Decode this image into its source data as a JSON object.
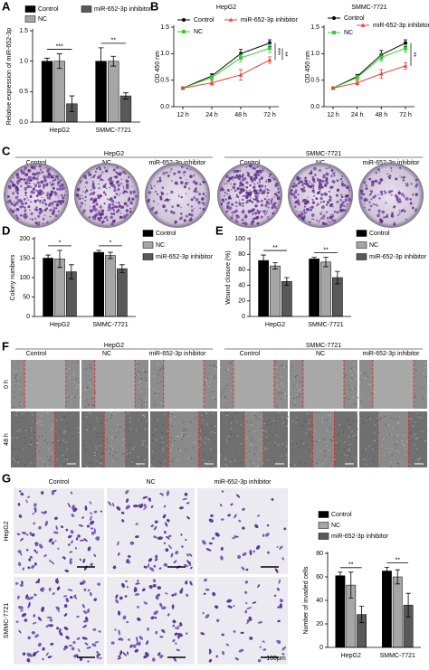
{
  "chart_data": [
    {
      "panel": "A",
      "type": "bar",
      "ylabel": "Relative expression of miR-652-3p",
      "categories": [
        "HepG2",
        "SMMC-7721"
      ],
      "series": [
        {
          "name": "Control",
          "color": "#000000",
          "values": [
            1.0,
            1.0
          ],
          "errors": [
            0.05,
            0.22
          ]
        },
        {
          "name": "NC",
          "color": "#a6a6a6",
          "values": [
            1.0,
            1.0
          ],
          "errors": [
            0.12,
            0.08
          ]
        },
        {
          "name": "miR-652-3p inhibitor",
          "color": "#595959",
          "values": [
            0.3,
            0.43
          ],
          "errors": [
            0.13,
            0.05
          ]
        }
      ],
      "ylim": [
        0,
        1.5
      ],
      "yticks": [
        {
          "value": 0,
          "label": "0.0"
        },
        0.5,
        {
          "value": 1,
          "label": "1.0"
        },
        1.5
      ],
      "annotations": [
        "***",
        "**"
      ]
    },
    {
      "panel": "B",
      "type": "line",
      "title": "HepG2",
      "ylabel": "OD 450 nm",
      "categories": [
        "12 h",
        "24 h",
        "48 h",
        "72 h"
      ],
      "series": [
        {
          "name": "Control",
          "color": "#000000",
          "values": [
            0.35,
            0.58,
            1.0,
            1.2
          ],
          "errors": [
            0.02,
            0.04,
            0.08,
            0.06
          ]
        },
        {
          "name": "NC",
          "color": "#33cc33",
          "values": [
            0.35,
            0.55,
            0.92,
            1.1
          ],
          "errors": [
            0.02,
            0.04,
            0.07,
            0.08
          ]
        },
        {
          "name": "miR-652-3p inhibitor",
          "color": "#e8443a",
          "values": [
            0.35,
            0.45,
            0.6,
            0.88
          ],
          "errors": [
            0.02,
            0.04,
            0.1,
            0.06
          ]
        }
      ],
      "ylim": [
        0,
        1.5
      ],
      "yticks": [
        {
          "value": 0,
          "label": "0.0"
        },
        0.5,
        {
          "value": 1,
          "label": "1.0"
        },
        1.5
      ],
      "annotations": [
        "***",
        "**"
      ]
    },
    {
      "type": "line",
      "title": "SMMC-7721",
      "ylabel": "OD 450 nm",
      "categories": [
        "12 h",
        "24 h",
        "48 h",
        "72 h"
      ],
      "series": [
        {
          "name": "Control",
          "color": "#000000",
          "values": [
            0.35,
            0.57,
            0.98,
            1.2
          ],
          "errors": [
            0.02,
            0.04,
            0.08,
            0.06
          ]
        },
        {
          "name": "NC",
          "color": "#33cc33",
          "values": [
            0.35,
            0.55,
            0.93,
            1.1
          ],
          "errors": [
            0.02,
            0.04,
            0.07,
            0.07
          ]
        },
        {
          "name": "miR-652-3p inhibitor",
          "color": "#e8443a",
          "values": [
            0.35,
            0.45,
            0.62,
            0.77
          ],
          "errors": [
            0.02,
            0.04,
            0.08,
            0.06
          ]
        }
      ],
      "ylim": [
        0,
        1.5
      ],
      "yticks": [
        {
          "value": 0,
          "label": "0.0"
        },
        0.5,
        {
          "value": 1,
          "label": "1.0"
        },
        1.5
      ],
      "annotations": [
        "**"
      ]
    },
    {
      "panel": "D",
      "type": "bar",
      "ylabel": "Colony numbers",
      "categories": [
        "HepG2",
        "SMMC-7721"
      ],
      "series": [
        {
          "name": "Control",
          "color": "#000000",
          "values": [
            150,
            165
          ],
          "errors": [
            8,
            5
          ]
        },
        {
          "name": "NC",
          "color": "#a6a6a6",
          "values": [
            148,
            157
          ],
          "errors": [
            22,
            8
          ]
        },
        {
          "name": "miR-652-3p inhibitor",
          "color": "#595959",
          "values": [
            115,
            123
          ],
          "errors": [
            18,
            10
          ]
        }
      ],
      "ylim": [
        0,
        200
      ],
      "yticks": [
        0,
        50,
        100,
        150,
        200
      ],
      "annotations": [
        "*",
        "*"
      ]
    },
    {
      "panel": "E",
      "type": "bar",
      "ylabel": "Wound closure (%)",
      "categories": [
        "HepG2",
        "SMMC-7721"
      ],
      "series": [
        {
          "name": "Control",
          "color": "#000000",
          "values": [
            72,
            74
          ],
          "errors": [
            7,
            2
          ]
        },
        {
          "name": "NC",
          "color": "#a6a6a6",
          "values": [
            65,
            70
          ],
          "errors": [
            4,
            6
          ]
        },
        {
          "name": "miR-652-3p inhibitor",
          "color": "#595959",
          "values": [
            45,
            50
          ],
          "errors": [
            5,
            8
          ]
        }
      ],
      "ylim": [
        0,
        100
      ],
      "yticks": [
        0,
        20,
        40,
        60,
        80,
        100
      ],
      "annotations": [
        "**",
        "**"
      ]
    },
    {
      "type": "bar",
      "ylabel": "Number of invaded cells",
      "categories": [
        "HepG2",
        "SMMC-7721"
      ],
      "series": [
        {
          "name": "Control",
          "color": "#000000",
          "values": [
            61,
            65
          ],
          "errors": [
            3,
            3
          ]
        },
        {
          "name": "NC",
          "color": "#a6a6a6",
          "values": [
            53,
            60
          ],
          "errors": [
            11,
            6
          ]
        },
        {
          "name": "miR-652-3p inhibitor",
          "color": "#595959",
          "values": [
            28,
            36
          ],
          "errors": [
            7,
            10
          ]
        }
      ],
      "ylim": [
        0,
        80
      ],
      "yticks": [
        0,
        20,
        40,
        60,
        80
      ],
      "annotations": [
        "**",
        "**"
      ]
    }
  ],
  "image_panels": {
    "C": {
      "label": "C",
      "groups": [
        "HepG2",
        "SMMC-7721"
      ],
      "columns": [
        "Control",
        "NC",
        "miR-652-3p inhibitor"
      ]
    },
    "F": {
      "label": "F",
      "groups": [
        "HepG2",
        "SMMC-7721"
      ],
      "columns": [
        "Control",
        "NC",
        "miR-652-3p inhibitor"
      ],
      "rows": [
        "0 h",
        "48 h"
      ]
    },
    "G": {
      "label": "G",
      "columns": [
        "Control",
        "NC",
        "miR-652-3p inhibitor"
      ],
      "rows": [
        "HepG2",
        "SMMC-7721"
      ],
      "scale_bar": "100μm"
    }
  }
}
